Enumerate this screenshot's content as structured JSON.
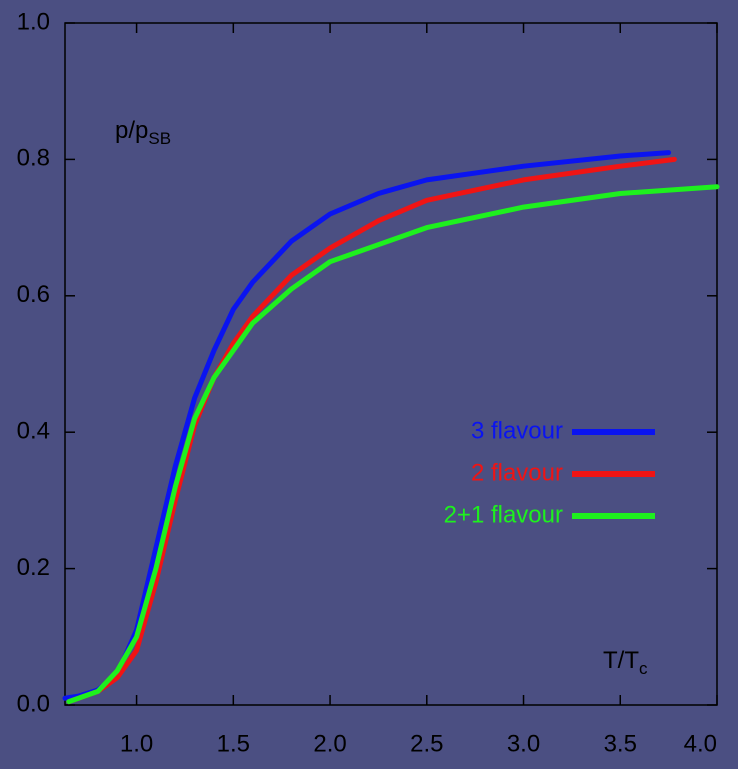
{
  "chart_data": {
    "type": "line",
    "y_label": "p/p",
    "y_label_sub": "SB",
    "x_label": "T/T",
    "x_label_sub": "c",
    "xlim": [
      0.63,
      4.0
    ],
    "ylim": [
      0.0,
      1.0
    ],
    "xticks": [
      {
        "value": 1,
        "label": "1.0"
      },
      1.5,
      {
        "value": 2,
        "label": "2.0"
      },
      2.5,
      {
        "value": 3,
        "label": "3.0"
      },
      3.5,
      {
        "value": 4,
        "label": "4.0"
      }
    ],
    "yticks": [
      {
        "value": 0,
        "label": "0.0"
      },
      0.2,
      0.4,
      0.6,
      0.8,
      {
        "value": 1,
        "label": "1.0"
      }
    ],
    "series": [
      {
        "name": "3 flavour",
        "color": "#0a14f0",
        "x": [
          0.63,
          0.7,
          0.8,
          0.9,
          1.0,
          1.1,
          1.2,
          1.3,
          1.4,
          1.5,
          1.6,
          1.8,
          2.0,
          2.25,
          2.5,
          3.0,
          3.5,
          3.75
        ],
        "values": [
          0.01,
          0.013,
          0.022,
          0.045,
          0.11,
          0.23,
          0.35,
          0.45,
          0.52,
          0.58,
          0.62,
          0.68,
          0.72,
          0.75,
          0.77,
          0.79,
          0.805,
          0.81
        ]
      },
      {
        "name": "2 flavour",
        "color": "#f01414",
        "x": [
          0.65,
          0.8,
          0.9,
          1.0,
          1.1,
          1.2,
          1.3,
          1.4,
          1.5,
          1.6,
          1.8,
          2.0,
          2.25,
          2.5,
          3.0,
          3.5,
          3.78
        ],
        "values": [
          0.005,
          0.02,
          0.04,
          0.08,
          0.18,
          0.3,
          0.41,
          0.48,
          0.53,
          0.57,
          0.63,
          0.67,
          0.71,
          0.74,
          0.77,
          0.79,
          0.8
        ]
      },
      {
        "name": "2+1 flavour",
        "color": "#1ef01e",
        "x": [
          0.65,
          0.8,
          0.9,
          1.0,
          1.1,
          1.2,
          1.3,
          1.4,
          1.5,
          1.6,
          1.8,
          2.0,
          2.5,
          3.0,
          3.5,
          4.0
        ],
        "values": [
          0.005,
          0.02,
          0.05,
          0.1,
          0.2,
          0.32,
          0.42,
          0.48,
          0.52,
          0.56,
          0.61,
          0.65,
          0.7,
          0.73,
          0.75,
          0.76
        ]
      }
    ]
  }
}
